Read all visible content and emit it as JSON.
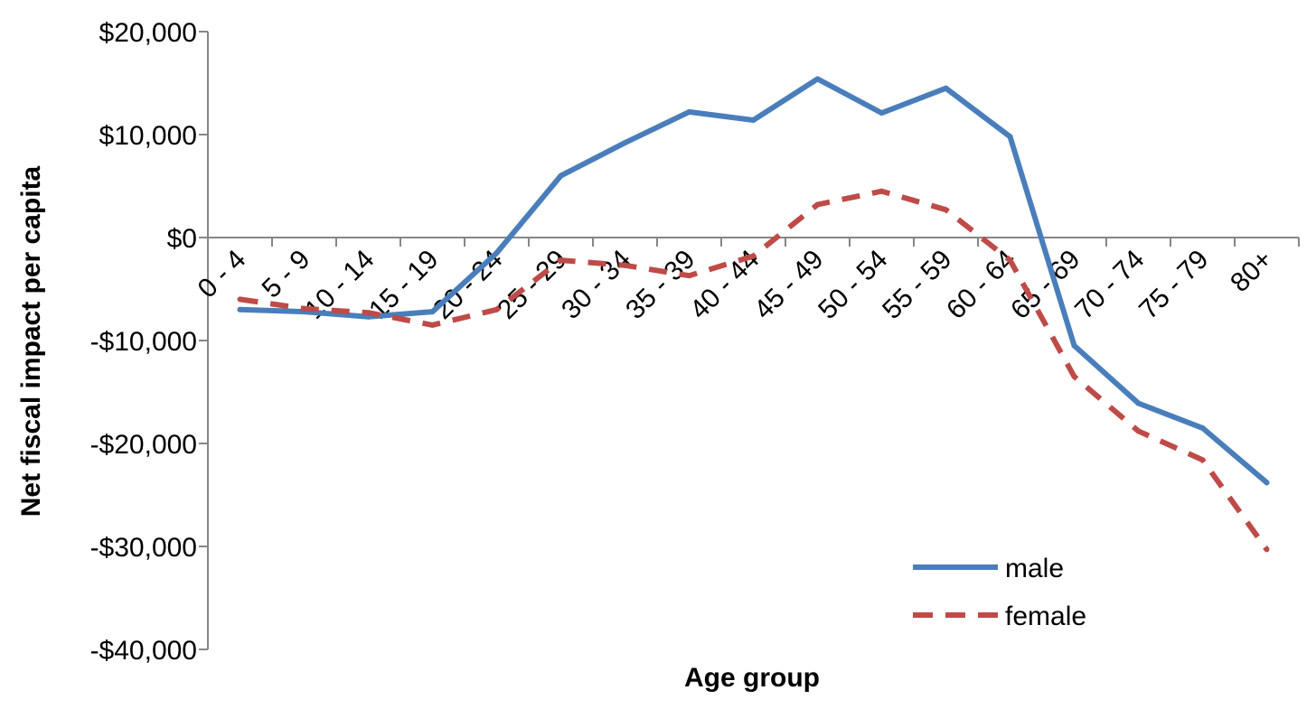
{
  "chart_data": {
    "type": "line",
    "title": "",
    "xlabel": "Age group",
    "ylabel": "Net fiscal impact per capita",
    "categories": [
      "0 - 4",
      "5 - 9",
      "10 - 14",
      "15 - 19",
      "20 - 24",
      "25 - 29",
      "30 - 34",
      "35 - 39",
      "40 - 44",
      "45 - 49",
      "50 - 54",
      "55 - 59",
      "60 - 64",
      "65 - 69",
      "70 - 74",
      "75 - 79",
      "80+"
    ],
    "ylim": [
      -40000,
      20000
    ],
    "yticks": [
      20000,
      10000,
      0,
      -10000,
      -20000,
      -30000,
      -40000
    ],
    "ytick_labels": [
      "$20,000",
      "$10,000",
      "$0",
      "-$10,000",
      "-$20,000",
      "-$30,000",
      "-$40,000"
    ],
    "grid": false,
    "legend_position": "bottom-right",
    "series": [
      {
        "name": "male",
        "color": "#4a7ebb",
        "style": "solid",
        "values": [
          -7000,
          -7200,
          -7700,
          -7200,
          -1500,
          6000,
          9200,
          12200,
          11400,
          15400,
          12100,
          14500,
          9800,
          -10500,
          -16100,
          -18500,
          -23800
        ]
      },
      {
        "name": "female",
        "color": "#be4b48",
        "style": "dashed",
        "values": [
          -6000,
          -6900,
          -7300,
          -8500,
          -7000,
          -2200,
          -2700,
          -3700,
          -1800,
          3200,
          4500,
          2700,
          -2200,
          -13500,
          -18800,
          -21600,
          -30300
        ]
      }
    ]
  }
}
